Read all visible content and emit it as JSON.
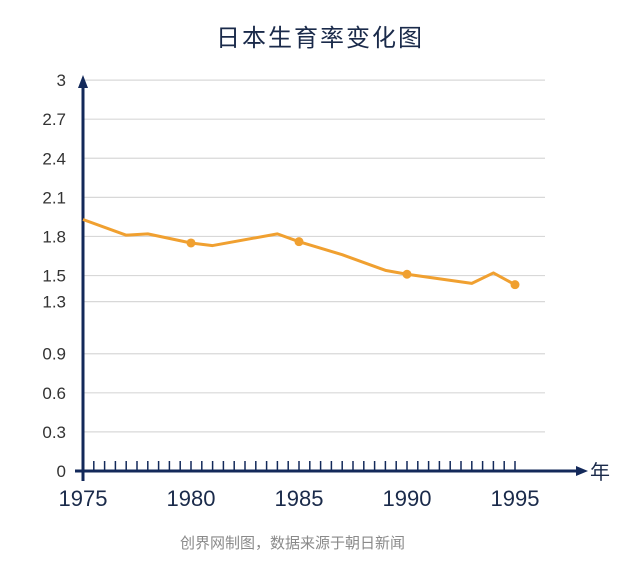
{
  "chart_data": {
    "type": "line",
    "title": "日本生育率变化图",
    "xlabel": "年",
    "ylabel": "",
    "x": [
      1975,
      1977,
      1978,
      1980,
      1981,
      1984,
      1985,
      1987,
      1989,
      1990,
      1993,
      1994,
      1995
    ],
    "values": [
      1.93,
      1.81,
      1.82,
      1.75,
      1.73,
      1.82,
      1.76,
      1.66,
      1.54,
      1.51,
      1.44,
      1.52,
      1.43
    ],
    "marked_x": [
      1980,
      1985,
      1990,
      1995
    ],
    "x_ticks": [
      "1975",
      "1980",
      "1985",
      "1990",
      "1995"
    ],
    "y_ticks": [
      "0",
      "0.3",
      "0.6",
      "0.9",
      "1.3",
      "1.5",
      "1.8",
      "2.1",
      "2.4",
      "2.7",
      "3"
    ],
    "ylim": [
      0,
      3
    ],
    "xlim": [
      1975,
      1996
    ],
    "grid": true,
    "colors": {
      "line": "#f0a030",
      "axis": "#13295a",
      "grid": "#d8d8d8"
    }
  },
  "footer": {
    "source": "创界网制图，数据来源于朝日新闻"
  }
}
